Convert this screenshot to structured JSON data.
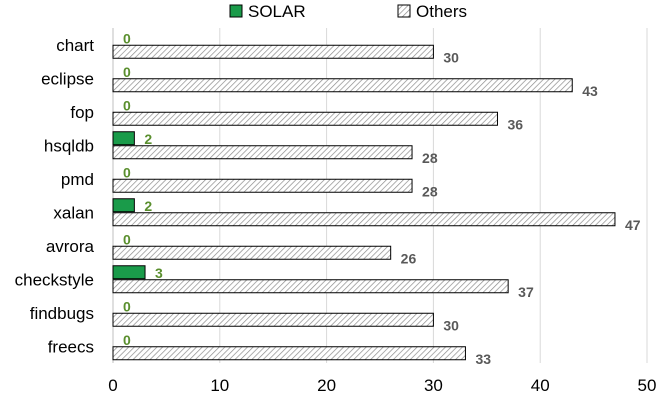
{
  "chart_data": {
    "type": "bar",
    "orientation": "horizontal",
    "categories": [
      "chart",
      "eclipse",
      "fop",
      "hsqldb",
      "pmd",
      "xalan",
      "avrora",
      "checkstyle",
      "findbugs",
      "freecs"
    ],
    "series": [
      {
        "name": "SOLAR",
        "values": [
          0,
          0,
          0,
          2,
          0,
          2,
          0,
          3,
          0,
          0
        ],
        "color": "#1a9b4a",
        "label_color": "#5a8f2e"
      },
      {
        "name": "Others",
        "values": [
          30,
          43,
          36,
          28,
          28,
          47,
          26,
          37,
          30,
          33
        ],
        "color": "#ffffff",
        "pattern": "diagonal-hatch",
        "label_color": "#595959"
      }
    ],
    "xlim": [
      0,
      50
    ],
    "xticks": [
      0,
      10,
      20,
      30,
      40,
      50
    ],
    "title": "",
    "xlabel": "",
    "ylabel": "",
    "grid": "vertical",
    "legend": "top-center"
  }
}
